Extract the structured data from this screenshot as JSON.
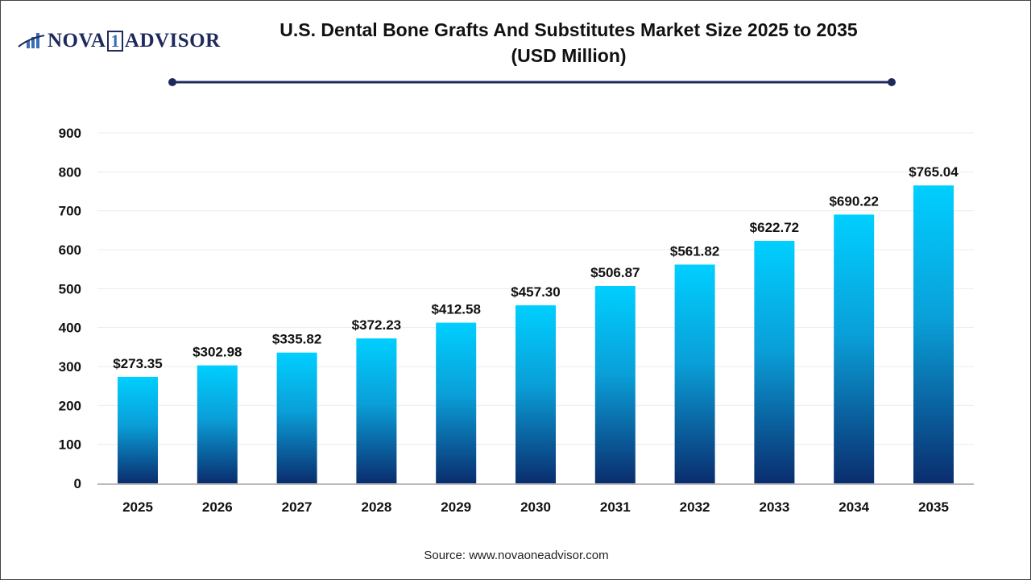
{
  "logo": {
    "text_left": "NOVA",
    "text_mid": "1",
    "text_right": "ADVISOR"
  },
  "source": "Source: www.novaoneadvisor.com",
  "colors": {
    "bar_top": "#00cfff",
    "bar_bottom": "#0a2d6e",
    "title_line": "#1f2a5c"
  },
  "chart_data": {
    "type": "bar",
    "title_line1": "U.S. Dental Bone Grafts And Substitutes Market Size 2025 to 2035",
    "title_line2": "(USD Million)",
    "categories": [
      "2025",
      "2026",
      "2027",
      "2028",
      "2029",
      "2030",
      "2031",
      "2032",
      "2033",
      "2034",
      "2035"
    ],
    "values": [
      273.35,
      302.98,
      335.82,
      372.23,
      412.58,
      457.3,
      506.87,
      561.82,
      622.72,
      690.22,
      765.04
    ],
    "labels": [
      "$273.35",
      "$302.98",
      "$335.82",
      "$372.23",
      "$412.58",
      "$457.30",
      "$506.87",
      "$561.82",
      "$622.72",
      "$690.22",
      "$765.04"
    ],
    "yticks": [
      0,
      100,
      200,
      300,
      400,
      500,
      600,
      700,
      800,
      900
    ],
    "ylim": [
      0,
      900
    ],
    "grid": true,
    "xlabel": "",
    "ylabel": ""
  }
}
